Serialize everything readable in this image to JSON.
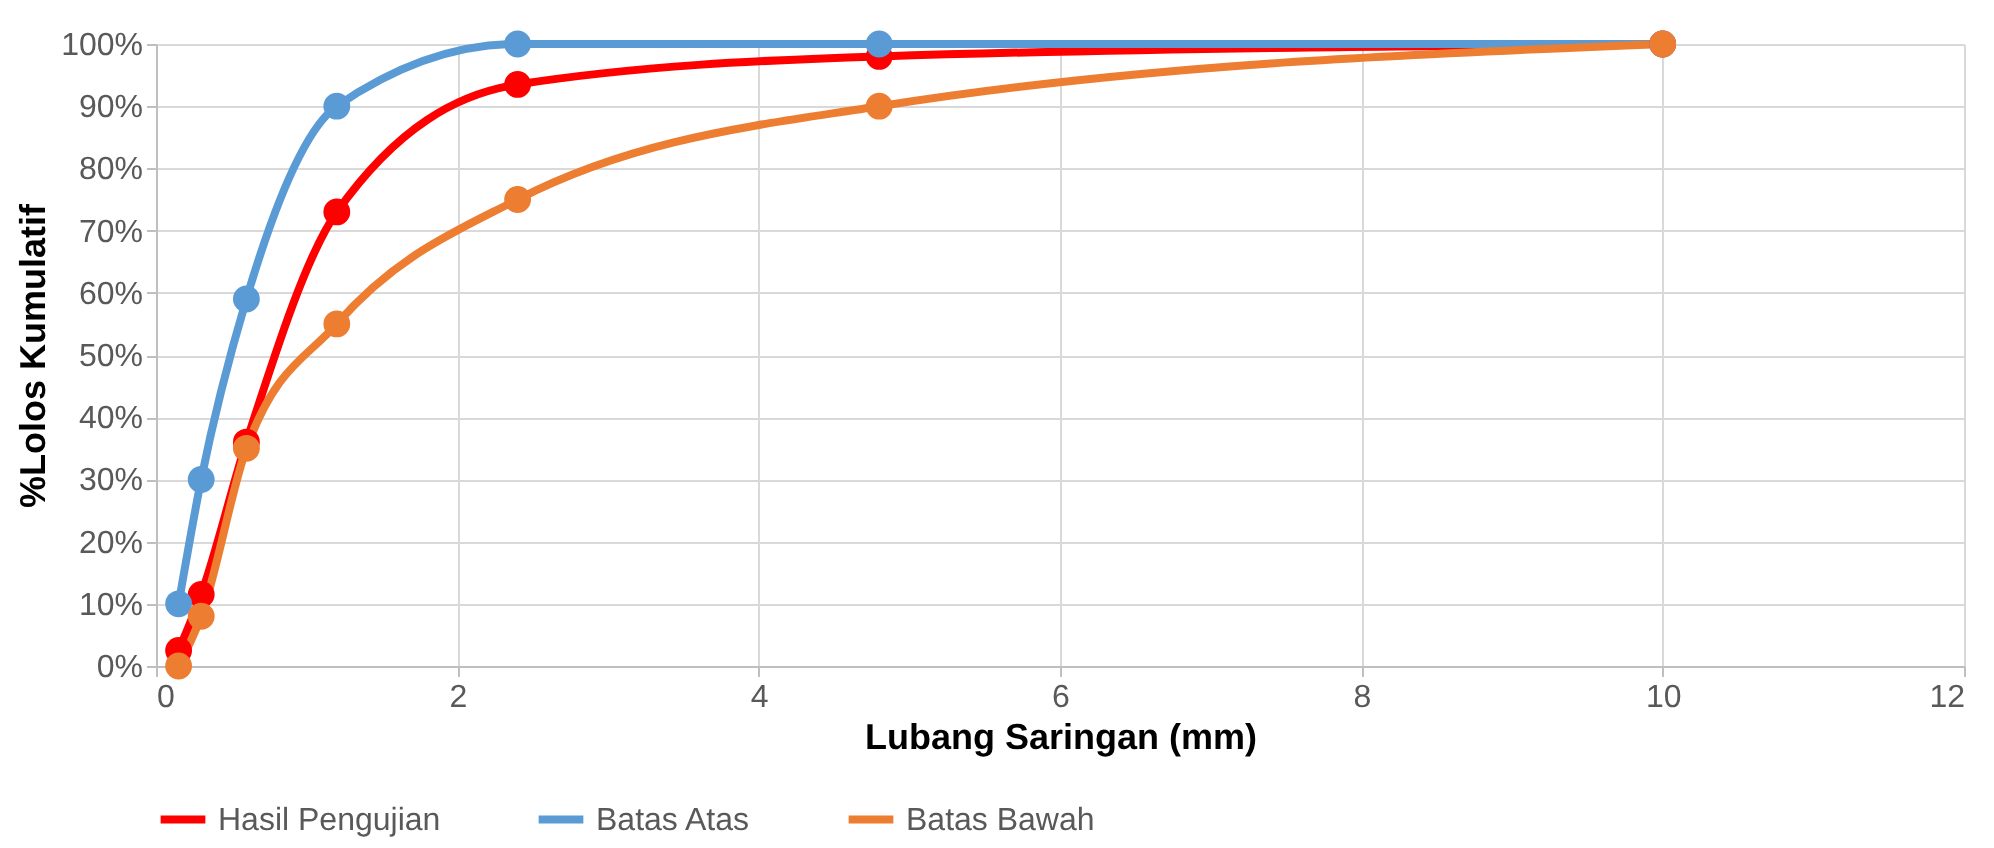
{
  "chart_data": {
    "type": "line",
    "xlabel": "Lubang Saringan (mm)",
    "ylabel": "%Lolos Kumulatif",
    "x": [
      0.15,
      0.3,
      0.6,
      1.2,
      2.4,
      4.8,
      10
    ],
    "series": [
      {
        "name": "Hasil Pengujian",
        "color": "#ff0000",
        "values": [
          2.5,
          11.5,
          36,
          73,
          93.5,
          98,
          100
        ]
      },
      {
        "name": "Batas Atas",
        "color": "#5b9bd5",
        "values": [
          10,
          30,
          59,
          90,
          100,
          100,
          100
        ]
      },
      {
        "name": "Batas Bawah",
        "color": "#ed7d31",
        "values": [
          0,
          8,
          35,
          55,
          75,
          90,
          100
        ]
      }
    ],
    "xlim": [
      0,
      12
    ],
    "xticks": [
      0,
      2,
      4,
      6,
      8,
      10,
      12
    ],
    "ylim": [
      0,
      100
    ],
    "yticks": [
      {
        "value": 0,
        "label": "0%"
      },
      {
        "value": 10,
        "label": "10%"
      },
      {
        "value": 20,
        "label": "20%"
      },
      {
        "value": 30,
        "label": "30%"
      },
      {
        "value": 40,
        "label": "40%"
      },
      {
        "value": 50,
        "label": "50%"
      },
      {
        "value": 60,
        "label": "60%"
      },
      {
        "value": 70,
        "label": "70%"
      },
      {
        "value": 80,
        "label": "80%"
      },
      {
        "value": 90,
        "label": "90%"
      },
      {
        "value": 100,
        "label": "100%"
      }
    ],
    "grid": true,
    "legend": "bottom",
    "marker": "circle",
    "line_style": "solid"
  }
}
